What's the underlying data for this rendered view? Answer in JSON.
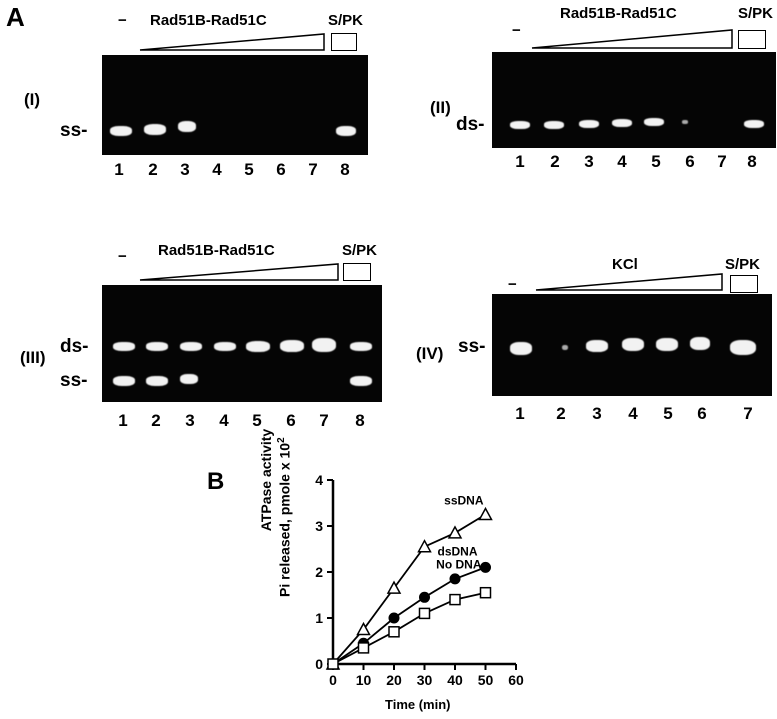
{
  "figure_letters": {
    "a": "A",
    "b": "B"
  },
  "panels": [
    {
      "id": "I",
      "roman": "(I)",
      "header": "Rad51B-Rad51C",
      "control": "S/PK",
      "dash": "−",
      "band_labels": [
        "ss-"
      ],
      "lanes": [
        "1",
        "2",
        "3",
        "4",
        "5",
        "6",
        "7",
        "8"
      ]
    },
    {
      "id": "II",
      "roman": "(II)",
      "header": "Rad51B-Rad51C",
      "control": "S/PK",
      "dash": "−",
      "band_labels": [
        "ds-"
      ],
      "lanes": [
        "1",
        "2",
        "3",
        "4",
        "5",
        "6",
        "7",
        "8"
      ]
    },
    {
      "id": "III",
      "roman": "(III)",
      "header": "Rad51B-Rad51C",
      "control": "S/PK",
      "dash": "−",
      "band_labels": [
        "ds-",
        "ss-"
      ],
      "lanes": [
        "1",
        "2",
        "3",
        "4",
        "5",
        "6",
        "7",
        "8"
      ]
    },
    {
      "id": "IV",
      "roman": "(IV)",
      "header": "KCl",
      "control": "S/PK",
      "dash": "−",
      "band_labels": [
        "ss-"
      ],
      "lanes": [
        "1",
        "2",
        "3",
        "4",
        "5",
        "6",
        "7"
      ]
    }
  ],
  "chart_data": {
    "type": "line",
    "xlabel": "Time (min)",
    "ylabel_line1": "ATPase activity",
    "ylabel_line2": "Pi released, pmole x 10",
    "ylabel_exponent": "2",
    "xlim": [
      0,
      60
    ],
    "ylim": [
      0,
      4
    ],
    "xticks": [
      "0",
      "10",
      "20",
      "30",
      "40",
      "50",
      "60"
    ],
    "yticks": [
      "0",
      "1",
      "2",
      "3",
      "4"
    ],
    "series": [
      {
        "name": "ssDNA",
        "marker": "triangle",
        "x": [
          0,
          10,
          20,
          30,
          40,
          50
        ],
        "y": [
          0,
          0.75,
          1.65,
          2.55,
          2.85,
          3.25
        ]
      },
      {
        "name": "dsDNA",
        "marker": "filled-circle",
        "x": [
          0,
          10,
          20,
          30,
          40,
          50
        ],
        "y": [
          0,
          0.45,
          1.0,
          1.45,
          1.85,
          2.1
        ]
      },
      {
        "name": "No DNA",
        "marker": "square",
        "x": [
          0,
          10,
          20,
          30,
          40,
          50
        ],
        "y": [
          0,
          0.35,
          0.7,
          1.1,
          1.4,
          1.55
        ]
      }
    ]
  }
}
